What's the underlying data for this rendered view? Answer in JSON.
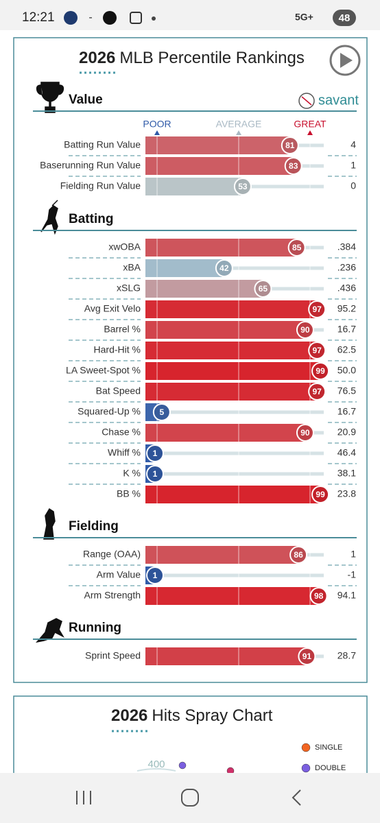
{
  "status_bar": {
    "time": "12:21",
    "separator": "-",
    "network": "5G+",
    "battery": "48"
  },
  "header": {
    "year": "2026",
    "title": "MLB Percentile Rankings",
    "brand": "savant"
  },
  "scale_labels": [
    {
      "text": "POOR",
      "color": "#2f5aa8"
    },
    {
      "text": "AVERAGE",
      "color": "#a9b9c4"
    },
    {
      "text": "GREAT",
      "color": "#c8102e"
    }
  ],
  "sections": [
    {
      "title": "Value",
      "rows": [
        {
          "label": "Batting Run Value",
          "percentile": 81,
          "stat": "4"
        },
        {
          "label": "Baserunning Run Value",
          "percentile": 83,
          "stat": "1"
        },
        {
          "label": "Fielding Run Value",
          "percentile": 53,
          "stat": "0"
        }
      ]
    },
    {
      "title": "Batting",
      "rows": [
        {
          "label": "xwOBA",
          "percentile": 85,
          "stat": ".384"
        },
        {
          "label": "xBA",
          "percentile": 42,
          "stat": ".236"
        },
        {
          "label": "xSLG",
          "percentile": 65,
          "stat": ".436"
        },
        {
          "label": "Avg Exit Velo",
          "percentile": 97,
          "stat": "95.2"
        },
        {
          "label": "Barrel %",
          "percentile": 90,
          "stat": "16.7"
        },
        {
          "label": "Hard-Hit %",
          "percentile": 97,
          "stat": "62.5"
        },
        {
          "label": "LA Sweet-Spot %",
          "percentile": 99,
          "stat": "50.0"
        },
        {
          "label": "Bat Speed",
          "percentile": 97,
          "stat": "76.5"
        },
        {
          "label": "Squared-Up %",
          "percentile": 5,
          "stat": "16.7"
        },
        {
          "label": "Chase %",
          "percentile": 90,
          "stat": "20.9"
        },
        {
          "label": "Whiff %",
          "percentile": 1,
          "stat": "46.4"
        },
        {
          "label": "K %",
          "percentile": 1,
          "stat": "38.1"
        },
        {
          "label": "BB %",
          "percentile": 99,
          "stat": "23.8"
        }
      ]
    },
    {
      "title": "Fielding",
      "rows": [
        {
          "label": "Range (OAA)",
          "percentile": 86,
          "stat": "1"
        },
        {
          "label": "Arm Value",
          "percentile": 1,
          "stat": "-1"
        },
        {
          "label": "Arm Strength",
          "percentile": 98,
          "stat": "94.1"
        }
      ]
    },
    {
      "title": "Running",
      "rows": [
        {
          "label": "Sprint Speed",
          "percentile": 91,
          "stat": "28.7"
        }
      ]
    }
  ],
  "spray_chart": {
    "year": "2026",
    "title": "Hits Spray Chart",
    "axis_label": "400",
    "legend": [
      {
        "name": "SINGLE",
        "color": "#f26522"
      },
      {
        "name": "DOUBLE",
        "color": "#7b5fe0"
      }
    ]
  }
}
